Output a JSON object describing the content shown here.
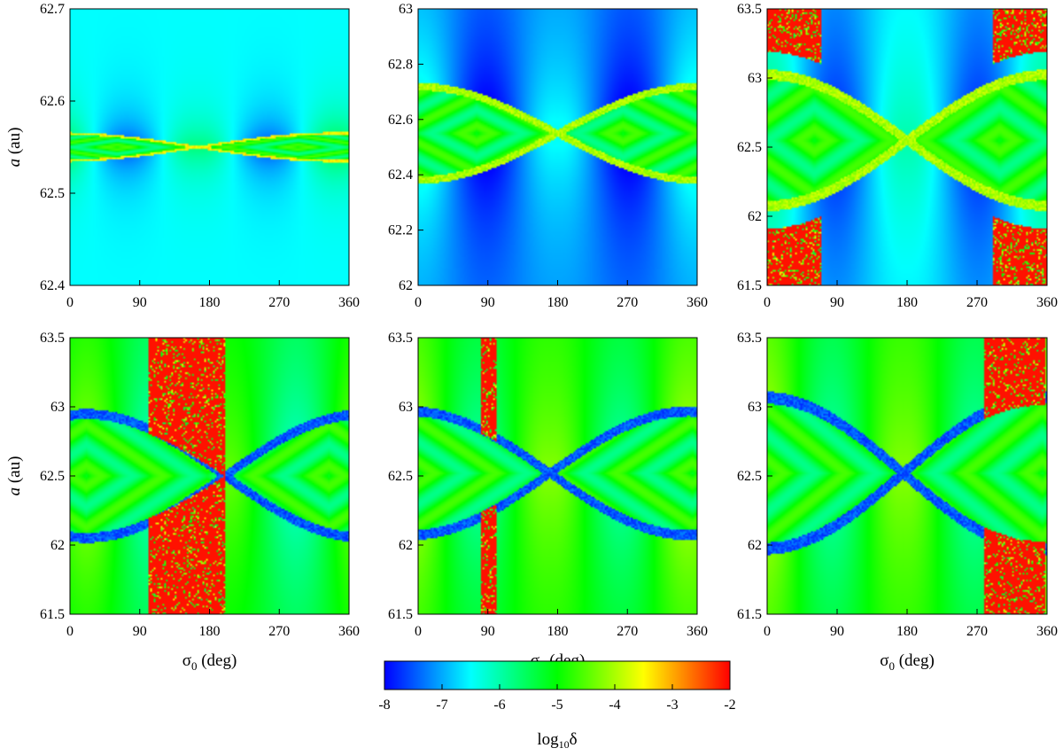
{
  "chart_data": [
    {
      "type": "heatmap",
      "panel": "top-left",
      "xlim": [
        0,
        360
      ],
      "ylim": [
        62.4,
        62.7
      ],
      "xticks": [
        "0",
        "90",
        "180",
        "270",
        "360"
      ],
      "yticks": [
        "62.4",
        "62.5",
        "62.6",
        "62.7"
      ],
      "xlabel": "",
      "ylabel_italic": "a",
      "ylabel_unit": " (au)",
      "structure": {
        "lobe_a_range": [
          62.535,
          62.565
        ],
        "center_a": 62.55,
        "saddle_sigma": 165,
        "left_center_sigma": 60,
        "right_center_sigma": 295,
        "background_level": -6.5,
        "separatrix_level": -3.5
      }
    },
    {
      "type": "heatmap",
      "panel": "top-middle",
      "xlim": [
        0,
        360
      ],
      "ylim": [
        62,
        63
      ],
      "xticks": [
        "0",
        "90",
        "180",
        "270",
        "360"
      ],
      "yticks": [
        "62",
        "62.2",
        "62.4",
        "62.6",
        "62.8",
        "63"
      ],
      "xlabel": "",
      "ylabel_italic": "",
      "ylabel_unit": "",
      "structure": {
        "lobe_a_range": [
          62.38,
          62.72
        ],
        "center_a": 62.55,
        "saddle_sigma": 180,
        "left_center_sigma": 75,
        "right_center_sigma": 265,
        "background_level": -7.2,
        "separatrix_level": -4.0
      }
    },
    {
      "type": "heatmap",
      "panel": "top-right",
      "xlim": [
        0,
        360
      ],
      "ylim": [
        61.5,
        63.5
      ],
      "xticks": [
        "0",
        "90",
        "180",
        "270",
        "360"
      ],
      "yticks": [
        "61.5",
        "62",
        "62.5",
        "63",
        "63.5"
      ],
      "xlabel": "",
      "ylabel_italic": "",
      "ylabel_unit": "",
      "structure": {
        "lobe_a_range": [
          62.05,
          63.0
        ],
        "center_a": 62.55,
        "saddle_sigma": 180,
        "left_center_sigma": 60,
        "right_center_sigma": 300,
        "background_level": -6.8,
        "separatrix_level": -4.0,
        "chaotic_corners": true
      }
    },
    {
      "type": "heatmap",
      "panel": "bottom-left",
      "xlim": [
        0,
        360
      ],
      "ylim": [
        61.5,
        63.5
      ],
      "xticks": [
        "0",
        "90",
        "180",
        "270",
        "360"
      ],
      "yticks": [
        "61.5",
        "62",
        "62.5",
        "63",
        "63.5"
      ],
      "xlabel": "σ",
      "xlabel_sub": "0",
      "xlabel_unit": " (deg)",
      "ylabel_italic": "a",
      "ylabel_unit": " (au)",
      "structure": {
        "lobe_a_range": [
          62.1,
          63.0
        ],
        "center_a": 62.5,
        "saddle_sigma": 200,
        "left_center_sigma": 20,
        "right_center_sigma": 335,
        "background_level": -5.2,
        "separatrix_level": -7.5,
        "chaotic_band_sigma": [
          100,
          200
        ]
      }
    },
    {
      "type": "heatmap",
      "panel": "bottom-middle",
      "xlim": [
        0,
        360
      ],
      "ylim": [
        61.5,
        63.5
      ],
      "xticks": [
        "0",
        "90",
        "180",
        "270",
        "360"
      ],
      "yticks": [
        "61.5",
        "62",
        "62.5",
        "63",
        "63.5"
      ],
      "xlabel": "σ",
      "xlabel_sub": "0",
      "xlabel_unit": " (deg)",
      "ylabel_italic": "",
      "ylabel_unit": "",
      "structure": {
        "lobe_a_range": [
          62.1,
          63.0
        ],
        "center_a": 62.52,
        "saddle_sigma": 170,
        "left_center_sigma": 0,
        "right_center_sigma": 355,
        "background_level": -5.0,
        "separatrix_level": -7.5,
        "chaotic_band_sigma": [
          80,
          100
        ]
      }
    },
    {
      "type": "heatmap",
      "panel": "bottom-right",
      "xlim": [
        0,
        360
      ],
      "ylim": [
        61.5,
        63.5
      ],
      "xticks": [
        "0",
        "90",
        "180",
        "270",
        "360"
      ],
      "yticks": [
        "61.5",
        "62",
        "62.5",
        "63",
        "63.5"
      ],
      "xlabel": "σ",
      "xlabel_sub": "0",
      "xlabel_unit": " (deg)",
      "ylabel_italic": "",
      "ylabel_unit": "",
      "structure": {
        "lobe_a_range": [
          61.95,
          63.05
        ],
        "center_a": 62.52,
        "saddle_sigma": 175,
        "left_center_sigma": 0,
        "right_center_sigma": 355,
        "background_level": -5.0,
        "separatrix_level": -7.5,
        "chaotic_band_sigma": [
          280,
          360
        ]
      }
    }
  ],
  "colorbar": {
    "range": [
      -8,
      -2
    ],
    "ticks": [
      "-8",
      "-7",
      "-6",
      "-5",
      "-4",
      "-3",
      "-2"
    ],
    "colors": [
      "#0000ff",
      "#00ffff",
      "#00ff00",
      "#ffff00",
      "#ff0000"
    ],
    "label_prefix": "log",
    "label_sub": "10",
    "label_symbol": "δ"
  }
}
